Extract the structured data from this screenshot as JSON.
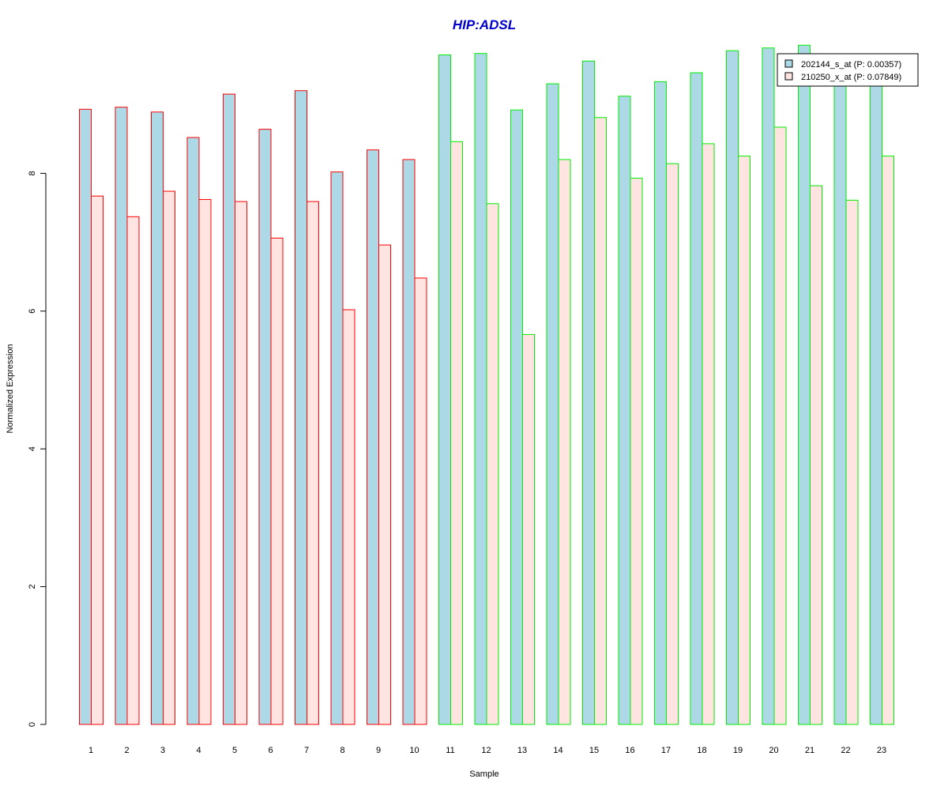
{
  "chart_data": {
    "type": "bar",
    "title": "HIP:ADSL",
    "xlabel": "Sample",
    "ylabel": "Normalized Expression",
    "ylim": [
      0,
      10
    ],
    "yticks": [
      "0",
      "2",
      "4",
      "6",
      "8"
    ],
    "categories": [
      "1",
      "2",
      "3",
      "4",
      "5",
      "6",
      "7",
      "8",
      "9",
      "10",
      "11",
      "12",
      "13",
      "14",
      "15",
      "16",
      "17",
      "18",
      "19",
      "20",
      "21",
      "22",
      "23"
    ],
    "group_outline": [
      "red",
      "red",
      "red",
      "red",
      "red",
      "red",
      "red",
      "red",
      "red",
      "red",
      "green",
      "green",
      "green",
      "green",
      "green",
      "green",
      "green",
      "green",
      "green",
      "green",
      "green",
      "green",
      "green"
    ],
    "series": [
      {
        "name": "202144_s_at (P: 0.00357)",
        "fill": "#add8e6",
        "values": [
          8.93,
          8.96,
          8.89,
          8.52,
          9.15,
          8.64,
          9.2,
          8.02,
          8.34,
          8.2,
          9.72,
          9.74,
          8.92,
          9.3,
          9.63,
          9.12,
          9.33,
          9.46,
          9.78,
          9.82,
          9.86,
          9.38,
          9.44
        ]
      },
      {
        "name": "210250_x_at (P: 0.07849)",
        "fill": "#ffe4e1",
        "values": [
          7.67,
          7.37,
          7.74,
          7.62,
          7.59,
          7.06,
          7.59,
          6.02,
          6.96,
          6.48,
          8.46,
          7.56,
          5.66,
          8.2,
          8.81,
          7.93,
          8.14,
          8.43,
          8.25,
          8.67,
          7.82,
          7.61,
          8.25
        ]
      }
    ],
    "legend_position": "top-right",
    "grid": false
  },
  "colors": {
    "title": "#0000cc",
    "outline_red": "#ff0000",
    "outline_green": "#00ee00",
    "axis": "#000000"
  }
}
